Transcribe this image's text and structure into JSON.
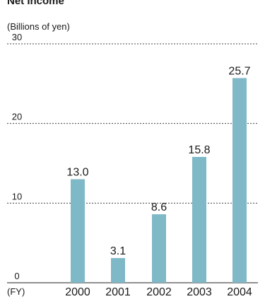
{
  "chart_data": {
    "type": "bar",
    "title": "Net Income",
    "unit_label": "(Billions of yen)",
    "xlabel": "(FY)",
    "ylabel": "",
    "categories": [
      "2000",
      "2001",
      "2002",
      "2003",
      "2004"
    ],
    "values": [
      13.0,
      3.1,
      8.6,
      15.8,
      25.7
    ],
    "value_labels": [
      "13.0",
      "3.1",
      "8.6",
      "15.8",
      "25.7"
    ],
    "yticks": [
      0,
      10,
      20,
      30
    ],
    "ytick_labels": [
      "0",
      "10",
      "20",
      "30"
    ],
    "ylim": [
      0,
      30
    ],
    "grid": true,
    "legend": "none",
    "bar_color": "#7fb8c6"
  }
}
